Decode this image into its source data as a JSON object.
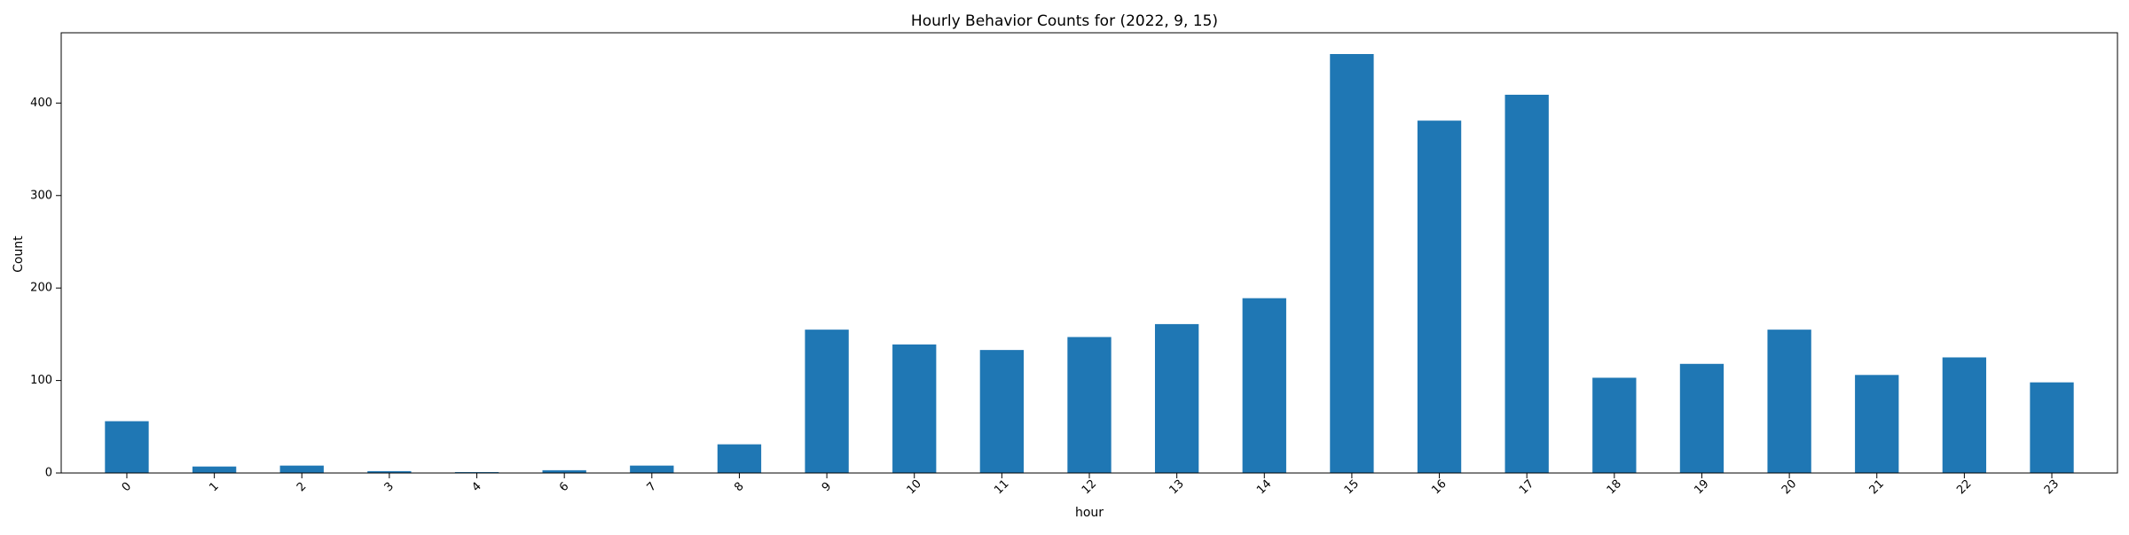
{
  "chart_data": {
    "type": "bar",
    "title": "Hourly Behavior Counts for (2022, 9, 15)",
    "xlabel": "hour",
    "ylabel": "Count",
    "categories": [
      "0",
      "1",
      "2",
      "3",
      "4",
      "6",
      "7",
      "8",
      "9",
      "10",
      "11",
      "12",
      "13",
      "14",
      "15",
      "16",
      "17",
      "18",
      "19",
      "20",
      "21",
      "22",
      "23"
    ],
    "values": [
      56,
      7,
      8,
      2,
      1,
      3,
      8,
      31,
      155,
      139,
      133,
      147,
      161,
      189,
      453,
      381,
      409,
      103,
      118,
      155,
      106,
      125,
      98
    ],
    "ylim": [
      0,
      476
    ],
    "yticks": [
      0,
      100,
      200,
      300,
      400
    ],
    "bar_color": "#1f77b4",
    "grid": false,
    "legend": "none"
  }
}
